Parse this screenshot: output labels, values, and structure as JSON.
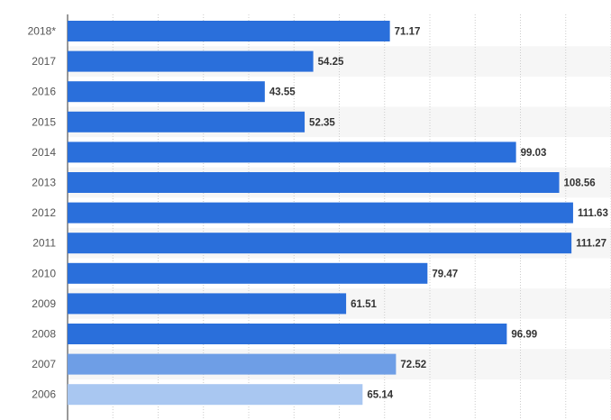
{
  "chart_data": {
    "type": "bar",
    "orientation": "horizontal",
    "categories": [
      "2018*",
      "2017",
      "2016",
      "2015",
      "2014",
      "2013",
      "2012",
      "2011",
      "2010",
      "2009",
      "2008",
      "2007",
      "2006"
    ],
    "values": [
      71.17,
      54.25,
      43.55,
      52.35,
      99.03,
      108.56,
      111.63,
      111.27,
      79.47,
      61.51,
      96.99,
      72.52,
      65.14
    ],
    "value_labels": [
      "71.17",
      "54.25",
      "43.55",
      "52.35",
      "99.03",
      "108.56",
      "111.63",
      "111.27",
      "79.47",
      "61.51",
      "96.99",
      "72.52",
      "65.14"
    ],
    "title": "",
    "xlabel": "",
    "ylabel": "",
    "xlim": [
      0,
      120
    ],
    "grid": true,
    "legend": "none",
    "bar_color": "#2a6fdb",
    "faded_bar_colors": [
      "#6e9ee6",
      "#a9c7f1"
    ],
    "faded_label_colors": [
      "#666666",
      "#9a9a9a"
    ]
  }
}
